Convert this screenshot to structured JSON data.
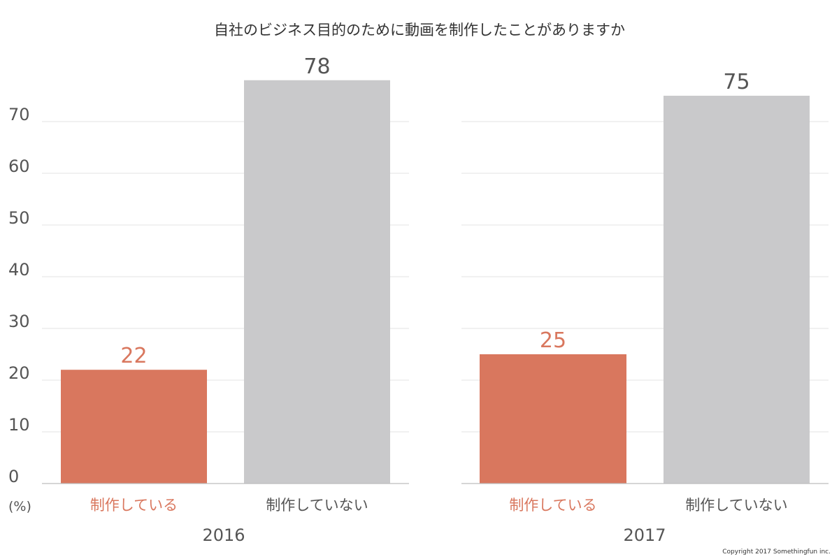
{
  "chart_data": [
    {
      "type": "bar",
      "title": "自社のビジネス目的のために動画を制作したことがありますか",
      "group_label": "2016",
      "categories": [
        "制作している",
        "制作していない"
      ],
      "values": [
        22,
        78
      ],
      "value_labels": [
        "22",
        "78"
      ],
      "colors": [
        "#d9775e",
        "#c9c9cb"
      ],
      "label_colors": [
        "#d9775e",
        "#555555"
      ],
      "ylabel": "(%)",
      "ylim": [
        0,
        80
      ],
      "yticks": [
        0,
        10,
        20,
        30,
        40,
        50,
        60,
        70
      ],
      "grid": true
    },
    {
      "type": "bar",
      "group_label": "2017",
      "categories": [
        "制作している",
        "制作していない"
      ],
      "values": [
        25,
        75
      ],
      "value_labels": [
        "25",
        "75"
      ],
      "colors": [
        "#d9775e",
        "#c9c9cb"
      ],
      "label_colors": [
        "#d9775e",
        "#555555"
      ],
      "ylim": [
        0,
        80
      ],
      "yticks": [
        0,
        10,
        20,
        30,
        40,
        50,
        60,
        70
      ],
      "grid": true
    }
  ],
  "copyright": "Copyright 2017 Somethingfun inc."
}
